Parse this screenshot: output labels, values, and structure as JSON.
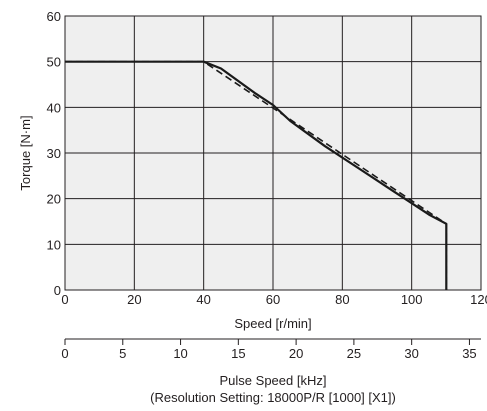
{
  "chart_data": {
    "type": "line",
    "xlabel": "Speed [r/min]",
    "ylabel": "Torque [N·m]",
    "xlim": [
      0,
      120
    ],
    "ylim": [
      0,
      60
    ],
    "x_ticks": [
      0,
      20,
      40,
      60,
      80,
      100,
      120
    ],
    "y_ticks": [
      0,
      10,
      20,
      30,
      40,
      50,
      60
    ],
    "grid": true,
    "plot_background": "#efefef",
    "secondary_axis": {
      "label": "Pulse Speed [kHz]",
      "sublabel": "(Resolution Setting: 18000P/R [1000] [X1])",
      "range": [
        0,
        36
      ],
      "ticks": [
        0,
        5,
        10,
        15,
        20,
        25,
        30,
        35
      ]
    },
    "series": [
      {
        "style": "solid",
        "color": "#1a1a1a",
        "x": [
          0,
          40,
          45,
          55,
          60,
          65,
          75,
          85,
          95,
          100,
          105,
          110,
          110
        ],
        "y": [
          50,
          50,
          48.5,
          43,
          40.5,
          37,
          31.5,
          26.5,
          21.5,
          19,
          16.5,
          14.5,
          0
        ]
      },
      {
        "style": "dashed",
        "color": "#1a1a1a",
        "x": [
          0,
          40,
          110,
          110
        ],
        "y": [
          50,
          50,
          14.5,
          0
        ]
      }
    ]
  }
}
